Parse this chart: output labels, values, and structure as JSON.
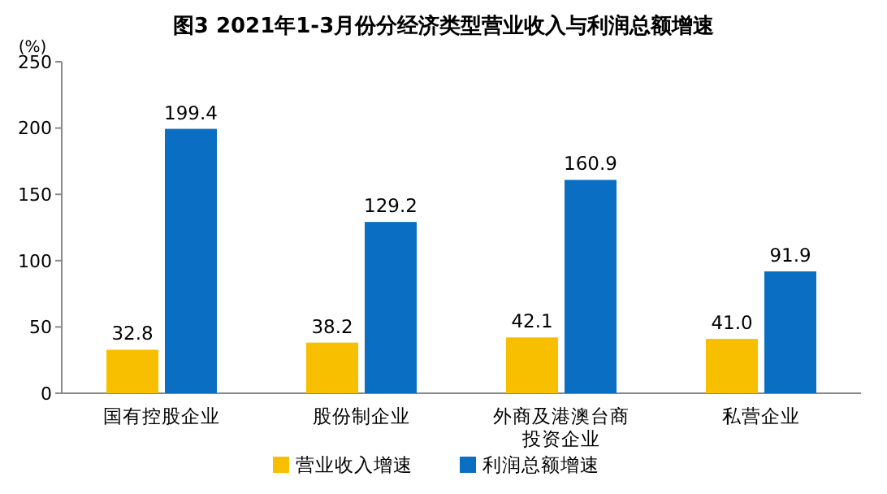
{
  "chart_data": {
    "type": "bar",
    "title": "图3  2021年1-3月份分经济类型营业收入与利润总额增速",
    "ylabel": "(%)",
    "categories": [
      "国有控股企业",
      "股份制企业",
      "外商及港澳台商投资企业",
      "私营企业"
    ],
    "series": [
      {
        "name": "营业收入增速",
        "color": "#f7bf00",
        "values": [
          32.8,
          38.2,
          42.1,
          41.0
        ],
        "value_labels": [
          "32.8",
          "38.2",
          "42.1",
          "41.0"
        ]
      },
      {
        "name": "利润总额增速",
        "color": "#0a6fc2",
        "values": [
          199.4,
          129.2,
          160.9,
          91.9
        ],
        "value_labels": [
          "199.4",
          "129.2",
          "160.9",
          "91.9"
        ]
      }
    ],
    "ylim": [
      0,
      250
    ],
    "yticks": [
      0,
      50,
      100,
      150,
      200,
      250
    ],
    "grid": false,
    "legend": "bottom",
    "data_labels": true
  }
}
